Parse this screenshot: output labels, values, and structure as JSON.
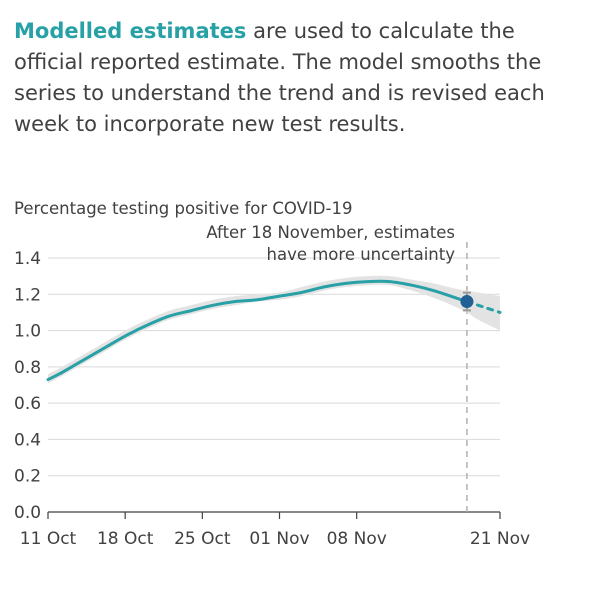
{
  "intro": {
    "highlight": "Modelled estimates",
    "text": " are used to calculate the official reported estimate. The model smooths the series to understand the trend and is revised each week to incorporate new test results."
  },
  "colors": {
    "accent": "#27a0a6",
    "band": "#e3e3e3",
    "point": "#206095",
    "grid": "#d9d9d9",
    "axis": "#414042"
  },
  "chart_data": {
    "type": "line",
    "title": "",
    "ylabel": "Percentage testing positive for COVID-19",
    "annotation": [
      "After 18 November, estimates",
      "have more uncertainty"
    ],
    "ylim": [
      0,
      1.4
    ],
    "yticks": [
      "0.0",
      "0.2",
      "0.4",
      "0.6",
      "0.8",
      "1.0",
      "1.2",
      "1.4"
    ],
    "xticks": [
      "11 Oct",
      "18 Oct",
      "25 Oct",
      "01 Nov",
      "08 Nov",
      "21 Nov"
    ],
    "xtick_days": [
      0,
      7,
      14,
      21,
      28,
      41
    ],
    "xlim_days": [
      0,
      41
    ],
    "grid": true,
    "marker": {
      "date": "18 Nov",
      "value": 1.16
    },
    "series": [
      {
        "dates": [
          "11 Oct",
          "12 Oct",
          "14 Oct",
          "16 Oct",
          "18 Oct",
          "20 Oct",
          "22 Oct",
          "24 Oct",
          "26 Oct",
          "28 Oct",
          "30 Oct",
          "01 Nov",
          "03 Nov",
          "05 Nov",
          "07 Nov",
          "09 Nov",
          "11 Nov",
          "13 Nov",
          "15 Nov",
          "17 Nov",
          "18 Nov"
        ],
        "values": [
          0.73,
          0.76,
          0.83,
          0.9,
          0.97,
          1.03,
          1.08,
          1.11,
          1.14,
          1.16,
          1.17,
          1.19,
          1.21,
          1.24,
          1.26,
          1.27,
          1.27,
          1.25,
          1.22,
          1.18,
          1.16
        ],
        "lower": [
          0.71,
          0.74,
          0.81,
          0.88,
          0.95,
          1.01,
          1.06,
          1.09,
          1.12,
          1.14,
          1.16,
          1.17,
          1.19,
          1.22,
          1.24,
          1.25,
          1.25,
          1.22,
          1.18,
          1.13,
          1.1
        ],
        "upper": [
          0.76,
          0.79,
          0.86,
          0.93,
          1.0,
          1.06,
          1.11,
          1.14,
          1.17,
          1.19,
          1.2,
          1.21,
          1.24,
          1.27,
          1.29,
          1.3,
          1.3,
          1.28,
          1.26,
          1.23,
          1.22
        ]
      },
      {
        "style": "dashed",
        "dates": [
          "18 Nov",
          "19 Nov",
          "20 Nov",
          "21 Nov"
        ],
        "values": [
          1.16,
          1.14,
          1.12,
          1.1
        ],
        "lower": [
          1.1,
          1.06,
          1.03,
          1.0
        ],
        "upper": [
          1.22,
          1.21,
          1.2,
          1.19
        ]
      }
    ]
  }
}
